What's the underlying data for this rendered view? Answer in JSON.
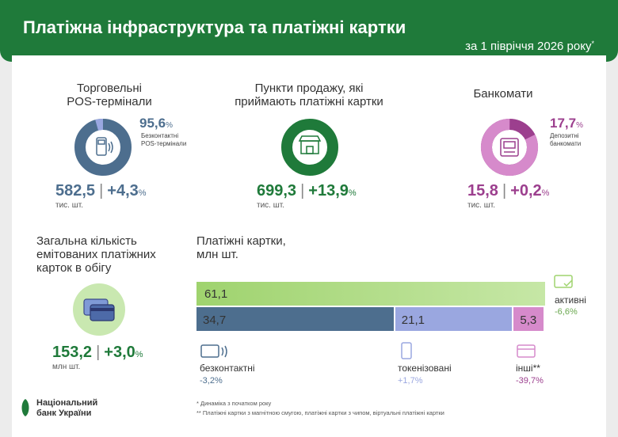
{
  "header": {
    "title": "Платіжна інфраструктура та платіжні картки",
    "period": "за 1 півріччя 2026 року",
    "period_mark": "*"
  },
  "pos": {
    "heading_line1": "Торговельні",
    "heading_line2": "POS-термінали",
    "share_value": "95,6",
    "share_unit": "%",
    "share_label_line1": "Безконтактні",
    "share_label_line2": "POS-термінали",
    "total": "582,5",
    "separator": "|",
    "change": "+4,3",
    "change_unit": "%",
    "unit": "тис. шт.",
    "color": "#4d6e8e",
    "share_color": "#9aa7e0"
  },
  "points": {
    "heading_line1": "Пункти продажу, які",
    "heading_line2": "приймають платіжні картки",
    "total": "699,3",
    "separator": "|",
    "change": "+13,9",
    "change_unit": "%",
    "unit": "тис. шт.",
    "color": "#1f7a3a"
  },
  "atm": {
    "heading": "Банкомати",
    "share_value": "17,7",
    "share_unit": "%",
    "share_label_line1": "Депозитні",
    "share_label_line2": "банкомати",
    "total": "15,8",
    "separator": "|",
    "change": "+0,2",
    "change_unit": "%",
    "unit": "тис. шт.",
    "color": "#9c3f8e",
    "share_color": "#d68acb"
  },
  "cards_total": {
    "heading_line1": "Загальна кількість",
    "heading_line2": "емітованих платіжних",
    "heading_line3": "карток в обігу",
    "total": "153,2",
    "separator": "|",
    "change": "+3,0",
    "change_unit": "%",
    "unit": "млн шт."
  },
  "chart_data": {
    "type": "bar",
    "title_line1": "Платіжні картки,",
    "title_line2": "млн шт.",
    "total": 153.2,
    "series": [
      {
        "name": "активні",
        "value": 61.1,
        "label": "61,1",
        "change": "-6,6%",
        "color": "#9fd36e"
      },
      {
        "name": "безконтактні",
        "value": 34.7,
        "label": "34,7",
        "change": "-3,2%",
        "color": "#4d6e8e"
      },
      {
        "name": "токенізовані",
        "value": 21.1,
        "label": "21,1",
        "change": "+1,7%",
        "color": "#9aa7e0"
      },
      {
        "name": "інші",
        "name_mark": "**",
        "value": 5.3,
        "label": "5,3",
        "change": "-39,7%",
        "color": "#d68acb"
      }
    ]
  },
  "footnotes": {
    "note1": "* Динаміка з початком року",
    "note2": "** Платіжні картки з магнітною смугою, платіжні картки з чипом, віртуальні платіжні картки"
  },
  "logo": {
    "line1": "Національний",
    "line2": "банк України"
  }
}
